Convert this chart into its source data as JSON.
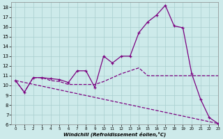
{
  "xlabel": "Windchill (Refroidissement éolien,°C)",
  "bg_color": "#cdeaea",
  "line_color": "#7b0080",
  "xlim": [
    -0.5,
    23
  ],
  "ylim": [
    6,
    18.5
  ],
  "xticks": [
    0,
    1,
    2,
    3,
    4,
    5,
    6,
    7,
    8,
    9,
    10,
    11,
    12,
    13,
    14,
    15,
    16,
    17,
    18,
    19,
    20,
    21,
    22,
    23
  ],
  "yticks": [
    6,
    7,
    8,
    9,
    10,
    11,
    12,
    13,
    14,
    15,
    16,
    17,
    18
  ],
  "line1_x": [
    0,
    1,
    2,
    3,
    4,
    5,
    6,
    7,
    8,
    9,
    10,
    11,
    12,
    13,
    14,
    15,
    16,
    17,
    18,
    19,
    20,
    21,
    22,
    23
  ],
  "line1_y": [
    10.5,
    9.3,
    10.8,
    10.8,
    10.7,
    10.6,
    10.3,
    11.5,
    11.5,
    9.8,
    13.0,
    12.3,
    13.0,
    13.0,
    15.4,
    16.5,
    17.2,
    18.2,
    16.1,
    15.9,
    11.2,
    8.6,
    6.7,
    6.1
  ],
  "line2_x": [
    0,
    1,
    2,
    3,
    4,
    5,
    6,
    7,
    8,
    9,
    10,
    11,
    12,
    13,
    14,
    15,
    16,
    17,
    18,
    19,
    20,
    21,
    22,
    23
  ],
  "line2_y": [
    10.5,
    9.3,
    10.8,
    10.8,
    10.5,
    10.4,
    10.1,
    10.1,
    10.1,
    10.1,
    10.4,
    10.8,
    11.2,
    11.5,
    11.8,
    11.0,
    11.0,
    11.0,
    11.0,
    11.0,
    11.0,
    11.0,
    11.0,
    11.0
  ],
  "line3_x": [
    0,
    23
  ],
  "line3_y": [
    10.5,
    6.1
  ]
}
